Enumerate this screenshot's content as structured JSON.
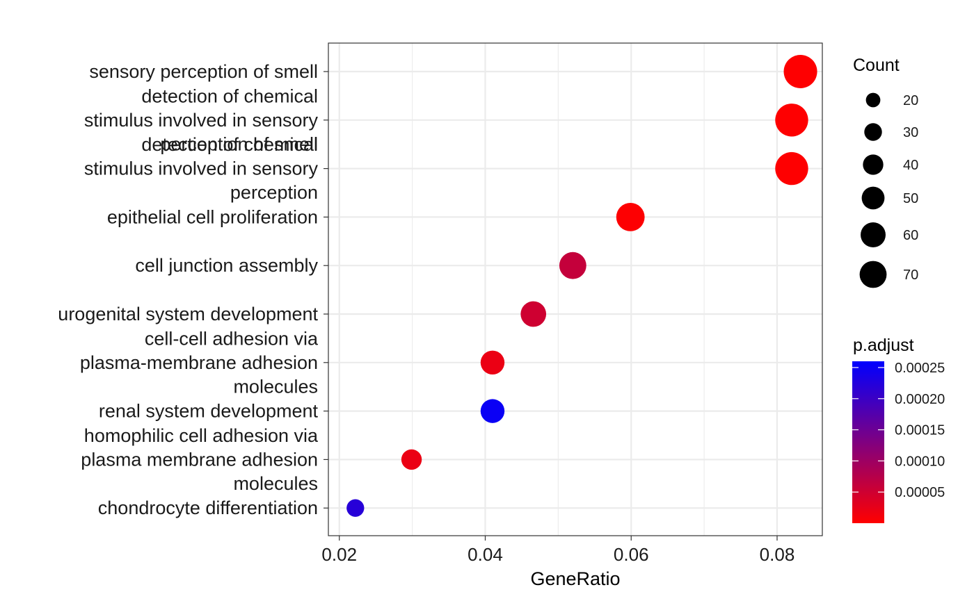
{
  "chart_data": {
    "type": "scatter",
    "xlabel": "GeneRatio",
    "xlim": [
      0.0185,
      0.0862
    ],
    "x_ticks": [
      0.02,
      0.04,
      0.06,
      0.08
    ],
    "x_tick_labels": [
      "0.02",
      "0.04",
      "0.06",
      "0.08"
    ],
    "grid": true,
    "categories": [
      "sensory perception of smell",
      "detection of chemical stimulus involved in sensory perception of smell",
      "detection of chemical stimulus involved in sensory perception",
      "epithelial cell proliferation",
      "cell junction assembly",
      "urogenital system development",
      "cell-cell adhesion via plasma-membrane adhesion molecules",
      "renal system development",
      "homophilic cell adhesion via plasma membrane adhesion molecules",
      "chondrocyte differentiation"
    ],
    "category_label_lines": [
      [
        "sensory perception of smell"
      ],
      [
        "detection of chemical",
        "stimulus involved in sensory",
        "perception of smell"
      ],
      [
        "detection of chemical",
        "stimulus involved in sensory",
        "perception"
      ],
      [
        "epithelial cell proliferation"
      ],
      [
        "cell junction assembly"
      ],
      [
        "urogenital system development"
      ],
      [
        "cell-cell adhesion via",
        "plasma-membrane adhesion",
        "molecules"
      ],
      [
        "renal system development"
      ],
      [
        "homophilic cell adhesion via",
        "plasma membrane adhesion",
        "molecules"
      ],
      [
        "chondrocyte differentiation"
      ]
    ],
    "x": [
      0.0832,
      0.082,
      0.082,
      0.0599,
      0.052,
      0.0466,
      0.041,
      0.041,
      0.0299,
      0.0222
    ],
    "count": [
      72,
      70,
      70,
      52,
      47,
      42,
      37,
      37,
      27,
      20
    ],
    "p_adjust": [
      1e-06,
      1e-06,
      1e-06,
      2e-06,
      6e-05,
      5e-05,
      2e-05,
      0.00025,
      2e-05,
      0.00022
    ],
    "size_legend": {
      "title": "Count",
      "values": [
        20,
        30,
        40,
        50,
        60,
        70
      ],
      "labels": [
        "20",
        "30",
        "40",
        "50",
        "60",
        "70"
      ]
    },
    "color_legend": {
      "title": "p.adjust",
      "min": 0,
      "max": 0.00026,
      "low_color": "#ff0000",
      "high_color": "#0000ff",
      "ticks": [
        0.00025,
        0.0002,
        0.00015,
        0.0001,
        5e-05
      ],
      "tick_labels": [
        "0.00025",
        "0.00020",
        "0.00015",
        "0.00010",
        "0.00005"
      ]
    },
    "legend_position": "right"
  }
}
